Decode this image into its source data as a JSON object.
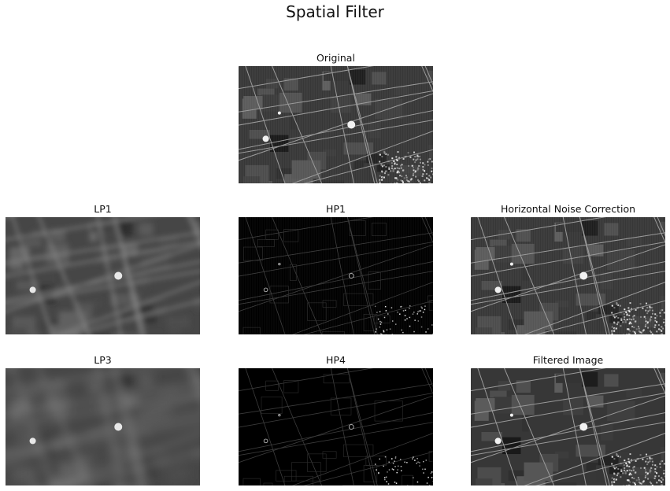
{
  "figure": {
    "title": "Spatial Filter"
  },
  "panels": [
    {
      "id": "original",
      "title": "Original",
      "style": "full"
    },
    {
      "id": "lp1",
      "title": "LP1",
      "style": "lowpass"
    },
    {
      "id": "hp1",
      "title": "HP1",
      "style": "highpass"
    },
    {
      "id": "hnc",
      "title": "Horizontal Noise Correction",
      "style": "full"
    },
    {
      "id": "lp3",
      "title": "LP3",
      "style": "lowpass-strong"
    },
    {
      "id": "hp4",
      "title": "HP4",
      "style": "highpass-clean"
    },
    {
      "id": "filtered",
      "title": "Filtered Image",
      "style": "full-clean"
    }
  ]
}
